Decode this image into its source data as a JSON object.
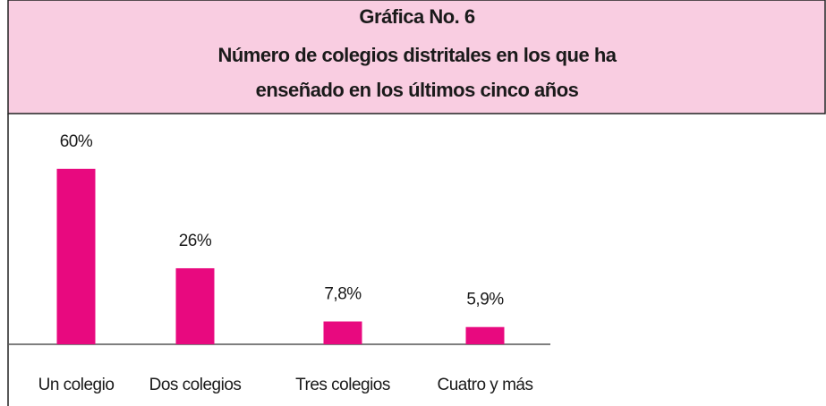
{
  "chart_data": {
    "type": "bar",
    "title": "Gráfica No. 6",
    "subtitle": [
      "Número de colegios distritales en los que ha",
      "enseñado en los últimos cinco años"
    ],
    "categories": [
      "Un colegio",
      "Dos colegios",
      "Tres colegios",
      "Cuatro y más"
    ],
    "values": [
      60,
      26,
      7.8,
      5.9
    ],
    "value_labels": [
      "60%",
      "26%",
      "7,8%",
      "5,9%"
    ],
    "color": "#e8097f",
    "header_color": "#f9cde1"
  }
}
